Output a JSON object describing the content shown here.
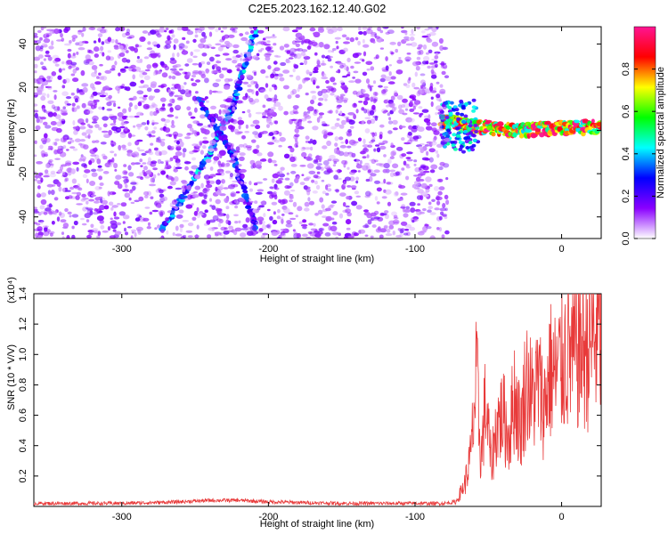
{
  "title": "C2E5.2023.162.12.40.G02",
  "chart_data": [
    {
      "type": "heatmap",
      "xlabel": "Height of straight line (km)",
      "ylabel": "Frequency (Hz)",
      "xlim": [
        -360,
        27
      ],
      "ylim": [
        -50,
        48
      ],
      "xticks": [
        -300,
        -200,
        -100,
        0
      ],
      "yticks": [
        -40,
        -20,
        0,
        20,
        40
      ],
      "colorbar": {
        "label": "Normalized spectral amplitude",
        "range": [
          0,
          1
        ],
        "ticks": [
          0.0,
          0.2,
          0.4,
          0.6,
          0.8
        ],
        "colormap": [
          "#ffffff",
          "#8a00ff",
          "#0000ff",
          "#00ffff",
          "#00ff00",
          "#ffff00",
          "#ff0000",
          "#ff1493"
        ]
      },
      "features": [
        {
          "kind": "chirp",
          "x": [
            -272,
            -240,
            -225,
            -208
          ],
          "y": [
            -46,
            -10,
            10,
            48
          ],
          "amplitude": 0.35
        },
        {
          "kind": "chirp",
          "x": [
            -248,
            -225,
            -208
          ],
          "y": [
            15,
            -10,
            -46
          ],
          "amplitude": 0.28
        },
        {
          "kind": "band",
          "x": [
            -82,
            -60,
            -30,
            0,
            27
          ],
          "y": [
            4,
            2,
            0,
            1,
            2
          ],
          "amplitude": 0.8
        },
        {
          "kind": "noise",
          "x": [
            -360,
            -78
          ],
          "y": [
            -50,
            48
          ],
          "amplitude": 0.1
        }
      ]
    },
    {
      "type": "line",
      "xlabel": "Height of straight line (km)",
      "ylabel": "SNR (10 * V/V)",
      "y_multiplier": "(x10⁴)",
      "xlim": [
        -360,
        27
      ],
      "ylim": [
        0,
        1.4
      ],
      "xticks": [
        -300,
        -200,
        -100,
        0
      ],
      "yticks": [
        0.2,
        0.4,
        0.6,
        0.8,
        1.0,
        1.2,
        1.4
      ],
      "grid": false,
      "series": [
        {
          "color": "#e83a3a",
          "x": [
            -360,
            -300,
            -260,
            -240,
            -220,
            -200,
            -150,
            -100,
            -80,
            -72,
            -66,
            -62,
            -58,
            -55,
            -52,
            -48,
            -44,
            -40,
            -36,
            -32,
            -28,
            -24,
            -20,
            -16,
            -12,
            -8,
            -4,
            0,
            4,
            8,
            12,
            16,
            20,
            27
          ],
          "y": [
            0.02,
            0.02,
            0.03,
            0.04,
            0.04,
            0.03,
            0.02,
            0.02,
            0.02,
            0.03,
            0.15,
            0.33,
            0.85,
            0.3,
            0.68,
            0.28,
            0.55,
            0.6,
            0.45,
            0.75,
            0.5,
            0.85,
            0.7,
            0.82,
            0.65,
            0.9,
            0.85,
            0.95,
            1.02,
            0.98,
            1.06,
            1.03,
            1.1,
            1.13
          ]
        }
      ]
    }
  ]
}
